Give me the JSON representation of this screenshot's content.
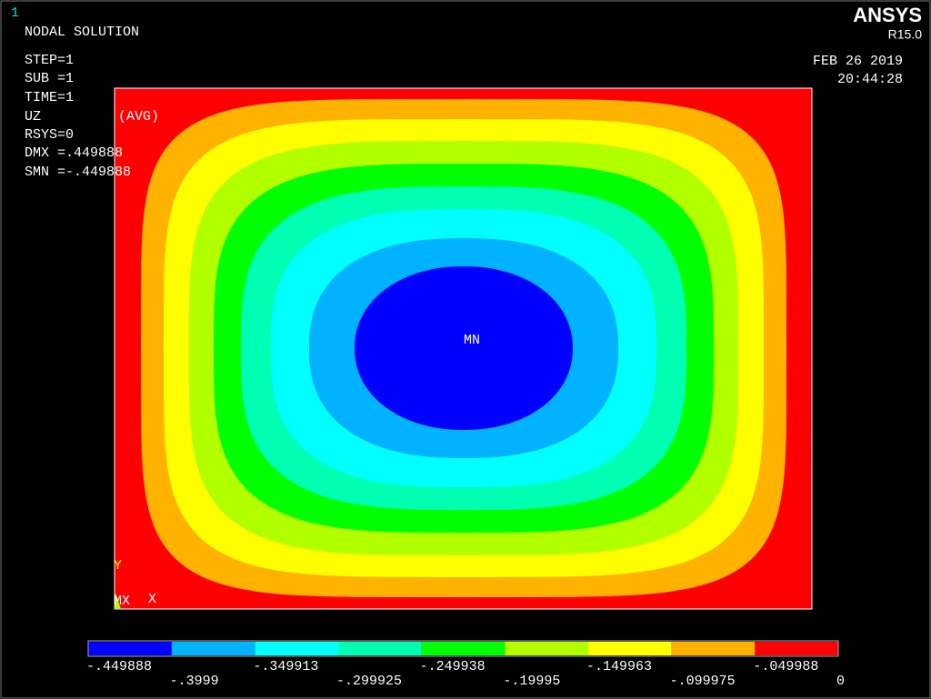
{
  "window_number": "1",
  "header": {
    "title": "NODAL SOLUTION",
    "info": [
      "STEP=1",
      "SUB =1",
      "TIME=1",
      "UZ",
      "RSYS=0",
      "DMX =.449888",
      "SMN =-.449888"
    ],
    "avg": "(AVG)"
  },
  "brand": {
    "name": "ANSYS",
    "version": "R15.0",
    "date": "FEB 26 2019",
    "time": "20:44:28"
  },
  "plot": {
    "min_label": "MN",
    "axis_y": "Y",
    "axis_mx": "MX",
    "axis_x": "X"
  },
  "legend": {
    "colors": [
      "#0000ff",
      "#00b2ff",
      "#00ffff",
      "#00ffb2",
      "#00ff00",
      "#b2ff00",
      "#ffff00",
      "#ffb200",
      "#ff0000"
    ],
    "labels": [
      "-.449888",
      "-.3999",
      "-.349913",
      "-.299925",
      "-.249938",
      "-.19995",
      "-.149963",
      "-.099975",
      "-.049988",
      "0"
    ]
  }
}
